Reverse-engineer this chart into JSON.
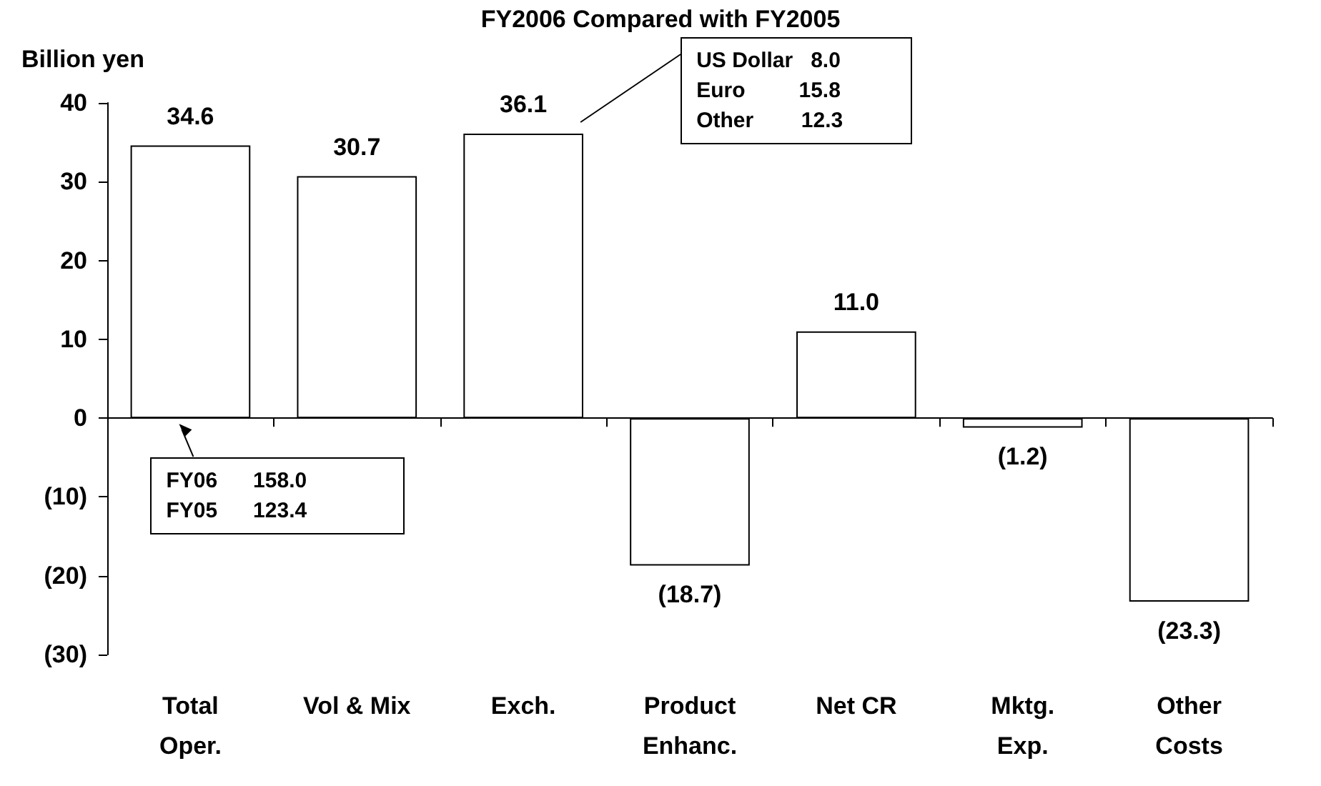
{
  "chart_data": {
    "type": "bar",
    "title": "FY2006 Compared with FY2005",
    "ylabel": "Billion yen",
    "categories": [
      "Total\nOper.",
      "Vol & Mix",
      "Exch.",
      "Product\nEnhanc.",
      "Net CR",
      "Mktg.\nExp.",
      "Other\nCosts"
    ],
    "values": [
      34.6,
      30.7,
      36.1,
      -18.7,
      11.0,
      -1.2,
      -23.3
    ],
    "value_labels": [
      "34.6",
      "30.7",
      "36.1",
      "(18.7)",
      "11.0",
      "(1.2)",
      "(23.3)"
    ],
    "color": "#ffffff",
    "ylim": [
      -30,
      40
    ],
    "yticks": [
      {
        "value": -30,
        "label": "(30)"
      },
      {
        "value": -20,
        "label": "(20)"
      },
      {
        "value": -10,
        "label": "(10)"
      },
      0,
      10,
      20,
      30,
      40
    ],
    "annotations": [
      "FY06      158.0\nFY05      123.4",
      "US Dollar   8.0\nEuro         15.8\nOther        12.3"
    ]
  }
}
